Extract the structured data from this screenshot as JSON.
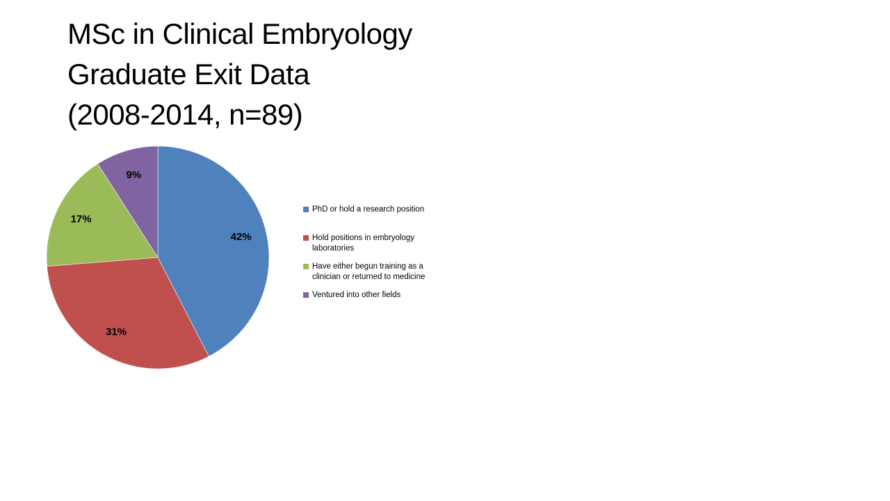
{
  "title": {
    "lines": [
      "MSc in Clinical Embryology",
      "Graduate Exit Data",
      "(2008-2014, n=89)"
    ]
  },
  "chart_data": {
    "type": "pie",
    "title": "MSc in Clinical Embryology Graduate Exit Data (2008-2014, n=89)",
    "categories": [
      "PhD or hold a research position",
      "Hold positions in embryology laboratories",
      "Have either begun training as a clinician or returned to medicine",
      "Ventured into other fields"
    ],
    "values": [
      42,
      31,
      17,
      9
    ],
    "unit": "%",
    "slice_labels": [
      "42%",
      "31%",
      "17%",
      "9%"
    ],
    "colors": [
      "#4F81BD",
      "#C0504D",
      "#9BBB59",
      "#8064A2"
    ],
    "start_angle_deg": 0,
    "direction": "clockwise",
    "legend_position": "right",
    "legend_wrapped": [
      "PhD or hold a research position",
      "Hold positions in embryology\nlaboratories",
      "Have either begun training as a\nclinician or returned to medicine",
      "Ventured into other fields"
    ]
  }
}
